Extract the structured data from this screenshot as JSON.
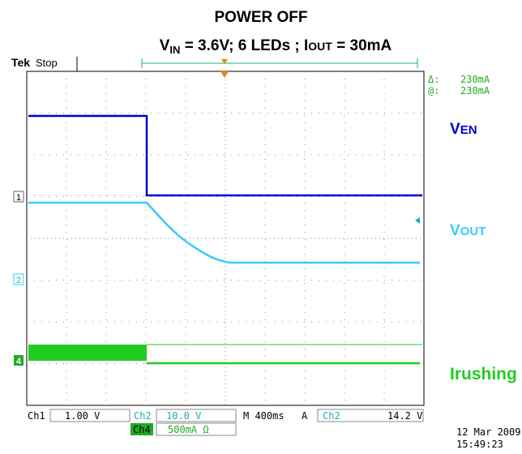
{
  "header": {
    "title": "POWER OFF",
    "subtitle": [
      "V",
      "IN",
      " = 3.6V; 6 LEDs ; I",
      "OUT",
      " = 30mA"
    ]
  },
  "status": {
    "brand": "Tek",
    "state": "Stop"
  },
  "readout": {
    "delta_label": "Δ:",
    "delta": "230mA",
    "at_label": "@:",
    "at": "230mA"
  },
  "traces": [
    {
      "label": [
        "V",
        "EN"
      ]
    },
    {
      "label": [
        "V",
        "OUT"
      ]
    },
    {
      "label": [
        "Irushing"
      ]
    }
  ],
  "markers": [
    "1",
    "2",
    "4"
  ],
  "footer": {
    "ch1": "Ch1",
    "ch1_scale": "1.00 V",
    "ch2": "Ch2",
    "ch2_scale": "10.0 V",
    "time": "M 400ms",
    "trig_mode": "A",
    "trig_src": "Ch2",
    "trig_level": "14.2 V",
    "ch4": "Ch4",
    "ch4_scale": "500mA Ω",
    "date": "12 Mar 2009",
    "time_of_day": "15:49:23"
  }
}
